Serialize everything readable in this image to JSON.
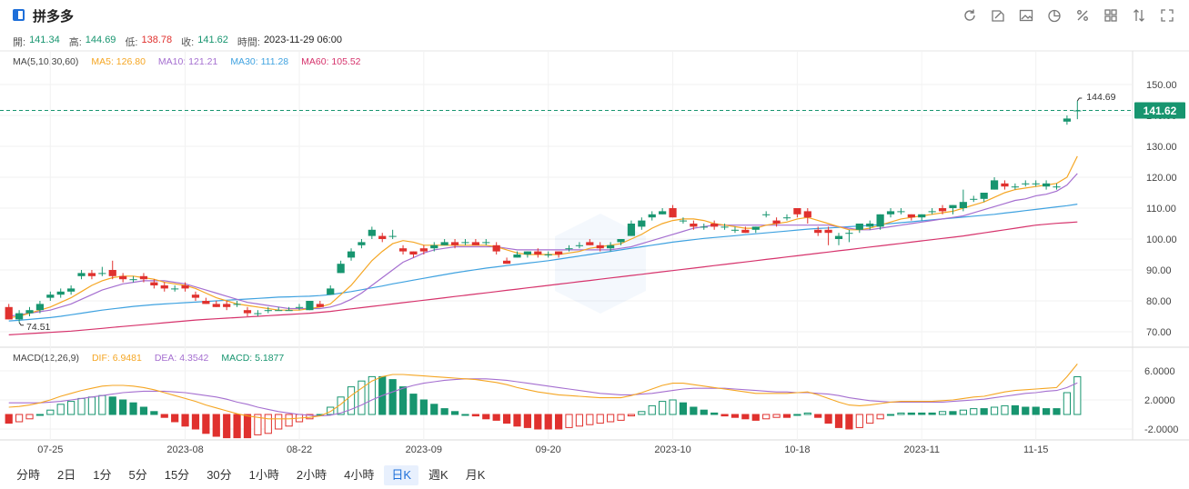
{
  "stock": {
    "name": "拼多多"
  },
  "ohlc": {
    "open_label": "開:",
    "open": "141.34",
    "high_label": "高:",
    "high": "144.69",
    "low_label": "低:",
    "low": "138.78",
    "close_label": "收:",
    "close": "141.62",
    "time_label": "時間:",
    "time": "2023-11-29 06:00"
  },
  "ma_legend": {
    "title": "MA(5,10,30,60)",
    "ma5": "MA5: 126.80",
    "ma10": "MA10: 121.21",
    "ma30": "MA30: 111.28",
    "ma60": "MA60: 105.52"
  },
  "macd_legend": {
    "title": "MACD(12,26,9)",
    "dif": "DIF: 6.9481",
    "dea": "DEA: 4.3542",
    "macd": "MACD: 5.1877"
  },
  "price_tag": "141.62",
  "high_marker": "144.69",
  "low_marker": "74.51",
  "periods": [
    "分時",
    "2日",
    "1分",
    "5分",
    "15分",
    "30分",
    "1小時",
    "2小時",
    "4小時",
    "日K",
    "週K",
    "月K"
  ],
  "active_period": "日K",
  "toolbar_icons": [
    "refresh-icon",
    "draw-icon",
    "image-icon",
    "pie-icon",
    "percent-icon",
    "grid-icon",
    "sort-icon",
    "fullscreen-icon"
  ],
  "colors": {
    "up": "#17956f",
    "down": "#e0312e",
    "ma5": "#f5a623",
    "ma10": "#a56fd0",
    "ma30": "#3fa2e0",
    "ma60": "#d6336c",
    "accent": "#1e6fd9"
  },
  "chart_data": {
    "type": "candlestick",
    "price_axis": {
      "ticks": [
        "150.00",
        "140.00",
        "130.00",
        "120.00",
        "110.00",
        "100.00",
        "90.00",
        "80.00",
        "70.00"
      ],
      "range": [
        65,
        155
      ]
    },
    "macd_axis": {
      "ticks": [
        "6.0000",
        "2.0000",
        "-2.0000"
      ],
      "range": [
        -3.5,
        9
      ]
    },
    "x_ticks": [
      "07-25",
      "2023-08",
      "08-22",
      "2023-09",
      "09-20",
      "2023-10",
      "10-18",
      "2023-11",
      "11-15"
    ],
    "candles": [
      [
        78,
        74,
        79,
        74
      ],
      [
        74,
        76,
        77,
        73
      ],
      [
        76,
        77,
        78,
        75
      ],
      [
        77,
        79,
        80,
        76
      ],
      [
        81,
        82,
        83,
        80
      ],
      [
        82,
        83,
        84,
        81
      ],
      [
        83,
        84,
        85,
        82
      ],
      [
        88,
        89,
        90,
        87
      ],
      [
        89,
        88,
        90,
        87
      ],
      [
        89,
        89,
        91,
        88
      ],
      [
        90,
        88,
        93,
        87
      ],
      [
        88,
        87,
        89,
        86
      ],
      [
        87,
        87,
        88,
        86
      ],
      [
        88,
        87,
        89,
        86
      ],
      [
        86,
        85,
        87,
        84
      ],
      [
        85,
        84,
        86,
        83
      ],
      [
        84,
        84,
        85,
        83
      ],
      [
        85,
        84,
        86,
        83
      ],
      [
        82,
        81,
        83,
        80
      ],
      [
        80,
        79,
        81,
        79
      ],
      [
        79,
        78,
        80,
        78
      ],
      [
        79,
        78,
        80,
        77
      ],
      [
        79,
        79,
        80,
        78
      ],
      [
        77,
        76,
        78,
        75
      ],
      [
        76,
        76,
        77,
        75
      ],
      [
        77,
        77,
        78,
        76
      ],
      [
        77,
        77,
        78,
        77
      ],
      [
        77,
        77,
        78,
        77
      ],
      [
        78,
        78,
        79,
        77
      ],
      [
        77,
        80,
        80,
        77
      ],
      [
        79,
        78,
        80,
        78
      ],
      [
        82,
        84,
        85,
        82
      ],
      [
        89,
        92,
        93,
        89
      ],
      [
        94,
        96,
        97,
        93
      ],
      [
        98,
        99,
        100,
        97
      ],
      [
        101,
        103,
        104,
        100
      ],
      [
        101,
        100,
        102,
        99
      ],
      [
        101,
        101,
        103,
        100
      ],
      [
        97,
        96,
        98,
        95
      ],
      [
        96,
        95,
        96,
        94
      ],
      [
        97,
        96,
        98,
        95
      ],
      [
        97,
        98,
        99,
        96
      ],
      [
        98,
        99,
        100,
        98
      ],
      [
        99,
        98,
        100,
        97
      ],
      [
        99,
        99,
        100,
        98
      ],
      [
        99,
        98,
        100,
        98
      ],
      [
        99,
        99,
        100,
        98
      ],
      [
        98,
        96,
        99,
        95
      ],
      [
        93,
        92,
        94,
        92
      ],
      [
        94,
        95,
        96,
        94
      ],
      [
        95,
        96,
        96,
        94
      ],
      [
        96,
        95,
        97,
        94
      ],
      [
        95,
        95,
        96,
        94
      ],
      [
        96,
        95,
        96,
        94
      ],
      [
        97,
        97,
        98,
        96
      ],
      [
        98,
        98,
        99,
        97
      ],
      [
        99,
        98,
        100,
        98
      ],
      [
        98,
        97,
        99,
        96
      ],
      [
        97,
        98,
        99,
        96
      ],
      [
        99,
        100,
        100,
        98
      ],
      [
        101,
        105,
        106,
        101
      ],
      [
        104,
        106,
        107,
        103
      ],
      [
        107,
        108,
        109,
        106
      ],
      [
        108,
        109,
        110,
        108
      ],
      [
        110,
        107,
        111,
        107
      ],
      [
        106,
        106,
        107,
        105
      ],
      [
        105,
        104,
        106,
        103
      ],
      [
        104,
        104,
        105,
        103
      ],
      [
        105,
        104,
        106,
        103
      ],
      [
        104,
        104,
        105,
        103
      ],
      [
        103,
        103,
        104,
        102
      ],
      [
        103,
        102,
        104,
        102
      ],
      [
        103,
        104,
        104,
        102
      ],
      [
        108,
        108,
        109,
        107
      ],
      [
        106,
        105,
        107,
        104
      ],
      [
        107,
        107,
        108,
        106
      ],
      [
        110,
        108,
        110,
        107
      ],
      [
        109,
        107,
        110,
        105
      ],
      [
        103,
        102,
        104,
        101
      ],
      [
        103,
        102,
        104,
        98
      ],
      [
        100,
        101,
        102,
        98
      ],
      [
        102,
        102,
        103,
        99
      ],
      [
        103,
        105,
        105,
        102
      ],
      [
        104,
        105,
        106,
        103
      ],
      [
        104,
        108,
        108,
        103
      ],
      [
        108,
        109,
        110,
        107
      ],
      [
        109,
        109,
        110,
        108
      ],
      [
        108,
        107,
        108,
        106
      ],
      [
        107,
        108,
        108,
        106
      ],
      [
        109,
        109,
        110,
        108
      ],
      [
        110,
        109,
        111,
        108
      ],
      [
        110,
        111,
        111,
        108
      ],
      [
        110,
        112,
        116,
        109
      ],
      [
        113,
        113,
        114,
        112
      ],
      [
        113,
        115,
        115,
        112
      ],
      [
        116,
        119,
        120,
        116
      ],
      [
        118,
        117,
        119,
        116
      ],
      [
        117,
        117,
        118,
        116
      ],
      [
        118,
        118,
        119,
        117
      ],
      [
        118,
        118,
        119,
        117
      ],
      [
        117,
        118,
        119,
        116
      ],
      [
        117,
        117,
        118,
        116
      ],
      [
        138,
        139,
        140,
        137
      ],
      [
        141.34,
        141.62,
        144.69,
        138.78
      ]
    ],
    "ma5": [
      74.51,
      75,
      76,
      77,
      78,
      79.5,
      81,
      83,
      85,
      86.5,
      87.5,
      88,
      88,
      87.5,
      87,
      86,
      85.5,
      85,
      84,
      82.5,
      81,
      80,
      79,
      78.5,
      78,
      77.5,
      77,
      77,
      77,
      77.5,
      78,
      79,
      82,
      85,
      89,
      93,
      96,
      98.5,
      99.5,
      99,
      98,
      98,
      98,
      98,
      98,
      98,
      98,
      97.5,
      96.5,
      95.5,
      95,
      95,
      95,
      95,
      95.5,
      96,
      97,
      97.5,
      98,
      98.5,
      100,
      101.5,
      103.5,
      105,
      106,
      106.5,
      106.5,
      106,
      105,
      104.5,
      104,
      103.5,
      103.5,
      104.5,
      105,
      105.5,
      106.5,
      107,
      106,
      105,
      104,
      103,
      103,
      103.5,
      104.5,
      105.5,
      106.5,
      107,
      107.5,
      108,
      108.5,
      109,
      110,
      111,
      112,
      113.5,
      115,
      116,
      116.5,
      117,
      117.5,
      118,
      120,
      126.8
    ],
    "ma10": [
      75,
      75.5,
      76,
      76.5,
      77,
      78,
      79,
      80.5,
      82,
      83.5,
      84.5,
      85.5,
      86,
      86.5,
      86.5,
      86.5,
      86,
      85.5,
      84.5,
      83.5,
      82.5,
      81.5,
      80.5,
      79.5,
      79,
      78.5,
      78,
      77.5,
      77.5,
      77.5,
      77.5,
      78,
      79,
      80.5,
      82.5,
      85,
      87.5,
      90,
      92.5,
      94,
      95.5,
      96.5,
      97,
      97.5,
      97.5,
      97.5,
      97.5,
      97.5,
      97,
      96.5,
      96.5,
      96.5,
      96.5,
      96.5,
      96.5,
      96.5,
      96.5,
      96.5,
      96.5,
      97,
      97.5,
      98.5,
      99.5,
      100.5,
      101.5,
      102.5,
      103.5,
      104,
      104.5,
      104.5,
      104.5,
      104.5,
      104.5,
      104.5,
      104.5,
      104.5,
      104.5,
      104.5,
      104.5,
      104.5,
      104,
      103.5,
      103,
      103,
      103.5,
      104,
      104.5,
      105,
      105.5,
      106,
      106.5,
      107,
      107.5,
      108.5,
      109.5,
      110.5,
      111.5,
      112.5,
      113,
      114,
      114.5,
      115.5,
      117.5,
      121.21
    ],
    "ma30": [
      73.5,
      73.7,
      74,
      74.3,
      74.6,
      75,
      75.5,
      76,
      76.5,
      77,
      77.4,
      77.8,
      78.2,
      78.5,
      78.8,
      79,
      79.2,
      79.4,
      79.6,
      79.8,
      80,
      80.2,
      80.4,
      80.6,
      80.8,
      81,
      81.2,
      81.3,
      81.4,
      81.5,
      81.7,
      82,
      82.5,
      83,
      83.6,
      84.2,
      84.8,
      85.5,
      86.1,
      86.7,
      87.3,
      87.9,
      88.5,
      89.1,
      89.6,
      90.1,
      90.6,
      91,
      91.4,
      91.8,
      92.2,
      92.6,
      93,
      93.5,
      94,
      94.5,
      95,
      95.5,
      96,
      96.5,
      97,
      97.5,
      98,
      98.5,
      99,
      99.4,
      99.8,
      100.2,
      100.5,
      100.8,
      101.1,
      101.4,
      101.7,
      102,
      102.3,
      102.6,
      102.9,
      103.2,
      103.4,
      103.6,
      103.8,
      104,
      104.2,
      104.4,
      104.7,
      105,
      105.3,
      105.6,
      105.9,
      106.2,
      106.5,
      106.8,
      107.1,
      107.4,
      107.7,
      108,
      108.4,
      108.8,
      109.2,
      109.6,
      110,
      110.4,
      110.8,
      111.28
    ],
    "ma60": [
      69,
      69.2,
      69.4,
      69.6,
      69.8,
      70,
      70.2,
      70.5,
      70.8,
      71.1,
      71.4,
      71.7,
      72,
      72.3,
      72.6,
      72.9,
      73.2,
      73.5,
      73.8,
      74,
      74.2,
      74.4,
      74.6,
      74.8,
      75,
      75.2,
      75.4,
      75.6,
      75.8,
      76,
      76.3,
      76.6,
      77,
      77.4,
      77.8,
      78.2,
      78.6,
      79,
      79.4,
      79.8,
      80.2,
      80.6,
      81,
      81.4,
      81.8,
      82.2,
      82.6,
      83,
      83.4,
      83.8,
      84.2,
      84.6,
      85,
      85.4,
      85.8,
      86.2,
      86.6,
      87,
      87.4,
      87.8,
      88.2,
      88.6,
      89,
      89.4,
      89.8,
      90.2,
      90.6,
      91,
      91.4,
      91.8,
      92.2,
      92.6,
      93,
      93.4,
      93.8,
      94.2,
      94.6,
      95,
      95.4,
      95.8,
      96.2,
      96.6,
      97,
      97.4,
      97.8,
      98.2,
      98.6,
      99,
      99.4,
      99.8,
      100.2,
      100.6,
      101,
      101.5,
      102,
      102.5,
      103,
      103.5,
      104,
      104.5,
      104.8,
      105.1,
      105.3,
      105.52
    ],
    "dif": [
      1.0,
      1.1,
      1.3,
      1.6,
      2.0,
      2.5,
      2.9,
      3.3,
      3.6,
      3.9,
      4.0,
      4.0,
      3.9,
      3.7,
      3.4,
      3.0,
      2.6,
      2.2,
      1.8,
      1.3,
      0.9,
      0.5,
      0.1,
      -0.2,
      -0.4,
      -0.6,
      -0.6,
      -0.6,
      -0.5,
      -0.4,
      -0.2,
      0.4,
      1.4,
      2.6,
      3.6,
      4.6,
      5.2,
      5.5,
      5.5,
      5.4,
      5.3,
      5.2,
      5.1,
      5.0,
      4.9,
      4.8,
      4.6,
      4.4,
      4.1,
      3.7,
      3.4,
      3.1,
      2.9,
      2.7,
      2.6,
      2.5,
      2.4,
      2.3,
      2.3,
      2.3,
      2.6,
      3.0,
      3.5,
      4.0,
      4.3,
      4.3,
      4.1,
      3.9,
      3.7,
      3.5,
      3.3,
      3.1,
      2.9,
      2.9,
      2.9,
      2.9,
      3.0,
      3.1,
      2.7,
      2.2,
      1.7,
      1.3,
      1.2,
      1.3,
      1.5,
      1.7,
      1.8,
      1.8,
      1.8,
      1.8,
      1.9,
      2.0,
      2.2,
      2.4,
      2.5,
      2.8,
      3.1,
      3.3,
      3.4,
      3.5,
      3.6,
      3.7,
      5.2,
      6.9481
    ],
    "dea": [
      1.6,
      1.6,
      1.6,
      1.6,
      1.7,
      1.8,
      2.0,
      2.2,
      2.4,
      2.6,
      2.8,
      3.0,
      3.1,
      3.2,
      3.2,
      3.2,
      3.1,
      3.0,
      2.8,
      2.6,
      2.4,
      2.1,
      1.7,
      1.4,
      1.0,
      0.7,
      0.4,
      0.2,
      0.0,
      -0.1,
      -0.2,
      -0.1,
      0.2,
      0.7,
      1.3,
      2.0,
      2.6,
      3.1,
      3.6,
      4.0,
      4.3,
      4.5,
      4.7,
      4.8,
      4.9,
      4.9,
      4.9,
      4.8,
      4.7,
      4.5,
      4.3,
      4.1,
      3.9,
      3.7,
      3.5,
      3.3,
      3.1,
      2.9,
      2.8,
      2.7,
      2.7,
      2.8,
      2.9,
      3.1,
      3.3,
      3.5,
      3.6,
      3.6,
      3.6,
      3.6,
      3.5,
      3.4,
      3.3,
      3.2,
      3.1,
      3.1,
      3.0,
      3.0,
      2.9,
      2.8,
      2.6,
      2.3,
      2.1,
      1.9,
      1.8,
      1.7,
      1.7,
      1.7,
      1.7,
      1.7,
      1.7,
      1.8,
      1.9,
      2.0,
      2.1,
      2.3,
      2.5,
      2.7,
      2.9,
      3.0,
      3.2,
      3.3,
      3.7,
      4.3542
    ],
    "macd": [
      -1.2,
      -1.0,
      -0.6,
      0.0,
      0.6,
      1.4,
      1.8,
      2.2,
      2.4,
      2.6,
      2.4,
      2.0,
      1.6,
      1.0,
      0.4,
      -0.4,
      -1.0,
      -1.6,
      -2.0,
      -2.6,
      -3.0,
      -3.2,
      -3.2,
      -3.2,
      -2.8,
      -2.6,
      -2.0,
      -1.6,
      -1.0,
      -0.6,
      0.0,
      1.0,
      2.4,
      3.8,
      4.6,
      5.2,
      5.2,
      4.8,
      3.8,
      2.8,
      2.0,
      1.4,
      0.8,
      0.4,
      0.0,
      -0.2,
      -0.6,
      -0.8,
      -1.2,
      -1.6,
      -1.8,
      -2.0,
      -2.0,
      -2.0,
      -1.8,
      -1.6,
      -1.4,
      -1.2,
      -1.0,
      -0.8,
      -0.2,
      0.4,
      1.2,
      1.8,
      2.0,
      1.6,
      1.0,
      0.6,
      0.2,
      -0.2,
      -0.4,
      -0.6,
      -0.8,
      -0.6,
      -0.4,
      -0.4,
      0.0,
      0.2,
      -0.4,
      -1.2,
      -1.8,
      -2.0,
      -1.8,
      -1.2,
      -0.6,
      0.0,
      0.2,
      0.2,
      0.2,
      0.2,
      0.4,
      0.4,
      0.6,
      0.8,
      0.8,
      1.0,
      1.2,
      1.2,
      1.0,
      1.0,
      0.8,
      0.8,
      3.0,
      5.1877
    ]
  }
}
